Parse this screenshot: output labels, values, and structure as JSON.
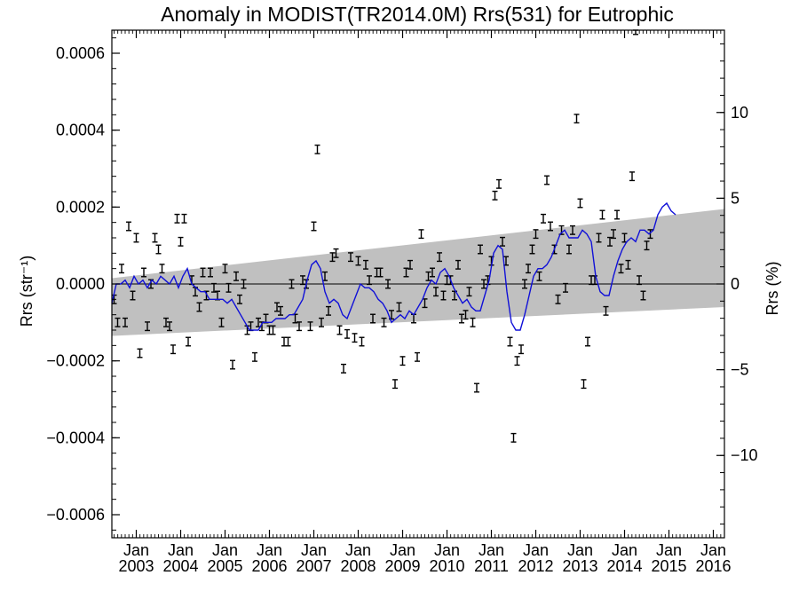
{
  "chart_data": {
    "type": "scatter",
    "title": "Anomaly in MODIST(TR2014.0M) Rrs(531) for Eutrophic",
    "ylabel_left": "Rrs (str⁻¹)",
    "ylabel_right": "Rrs (%)",
    "xlabel": "",
    "xlim": [
      2002.45,
      2016.25
    ],
    "ylim_left": [
      -0.00066,
      0.00066
    ],
    "ylim_right": [
      -14.8,
      14.8
    ],
    "y_ticks_left": [
      {
        "value": -0.0006,
        "label": "−0.0006"
      },
      {
        "value": -0.0004,
        "label": "−0.0004"
      },
      {
        "value": -0.0002,
        "label": "−0.0002"
      },
      {
        "value": 0.0,
        "label": "0.0000"
      },
      {
        "value": 0.0002,
        "label": "0.0002"
      },
      {
        "value": 0.0004,
        "label": "0.0004"
      },
      {
        "value": 0.0006,
        "label": "0.0006"
      }
    ],
    "y_ticks_right": [
      {
        "value": -10,
        "label": "−10"
      },
      {
        "value": -5,
        "label": "−5"
      },
      {
        "value": 0,
        "label": "0"
      },
      {
        "value": 5,
        "label": "5"
      },
      {
        "value": 10,
        "label": "10"
      }
    ],
    "x_ticks": [
      {
        "value": 2003.0,
        "month": "Jan",
        "year": "2003"
      },
      {
        "value": 2004.0,
        "month": "Jan",
        "year": "2004"
      },
      {
        "value": 2005.0,
        "month": "Jan",
        "year": "2005"
      },
      {
        "value": 2006.0,
        "month": "Jan",
        "year": "2006"
      },
      {
        "value": 2007.0,
        "month": "Jan",
        "year": "2007"
      },
      {
        "value": 2008.0,
        "month": "Jan",
        "year": "2008"
      },
      {
        "value": 2009.0,
        "month": "Jan",
        "year": "2009"
      },
      {
        "value": 2010.0,
        "month": "Jan",
        "year": "2010"
      },
      {
        "value": 2011.0,
        "month": "Jan",
        "year": "2011"
      },
      {
        "value": 2012.0,
        "month": "Jan",
        "year": "2012"
      },
      {
        "value": 2013.0,
        "month": "Jan",
        "year": "2013"
      },
      {
        "value": 2014.0,
        "month": "Jan",
        "year": "2014"
      },
      {
        "value": 2015.0,
        "month": "Jan",
        "year": "2015"
      },
      {
        "value": 2016.0,
        "month": "Jan",
        "year": "2016"
      }
    ],
    "confidence_band": {
      "color": "#c0c0c0",
      "upper": [
        [
          2002.45,
          1.5e-05
        ],
        [
          2016.25,
          0.000195
        ]
      ],
      "lower": [
        [
          2002.45,
          -0.000135
        ],
        [
          2016.25,
          -6e-05
        ]
      ]
    },
    "zero_line": 0,
    "error_bar_halfwidth": 1.1e-05,
    "points": [
      [
        2002.5,
        -4e-05
      ],
      [
        2002.58,
        -0.0001
      ],
      [
        2002.67,
        4e-05
      ],
      [
        2002.75,
        -0.0001
      ],
      [
        2002.83,
        0.00015
      ],
      [
        2002.92,
        -3e-05
      ],
      [
        2003.0,
        0.00012
      ],
      [
        2003.08,
        -0.00018
      ],
      [
        2003.17,
        3e-05
      ],
      [
        2003.25,
        -0.00011
      ],
      [
        2003.33,
        0.0
      ],
      [
        2003.42,
        0.00012
      ],
      [
        2003.5,
        9e-05
      ],
      [
        2003.58,
        4e-05
      ],
      [
        2003.67,
        -0.0001
      ],
      [
        2003.75,
        -0.00011
      ],
      [
        2003.83,
        -0.00017
      ],
      [
        2003.92,
        0.00017
      ],
      [
        2004.0,
        0.00011
      ],
      [
        2004.08,
        0.00017
      ],
      [
        2004.17,
        -0.00015
      ],
      [
        2004.25,
        1e-05
      ],
      [
        2004.33,
        -2e-05
      ],
      [
        2004.42,
        -6e-05
      ],
      [
        2004.5,
        3e-05
      ],
      [
        2004.58,
        -3e-05
      ],
      [
        2004.67,
        3e-05
      ],
      [
        2004.75,
        -1e-05
      ],
      [
        2004.83,
        -3e-05
      ],
      [
        2004.92,
        -0.0001
      ],
      [
        2005.0,
        4e-05
      ],
      [
        2005.08,
        -1e-05
      ],
      [
        2005.17,
        -0.00021
      ],
      [
        2005.25,
        2e-05
      ],
      [
        2005.33,
        -4e-05
      ],
      [
        2005.42,
        0.0
      ],
      [
        2005.5,
        -0.00012
      ],
      [
        2005.58,
        -0.00011
      ],
      [
        2005.67,
        -0.00019
      ],
      [
        2005.75,
        -0.0001
      ],
      [
        2005.83,
        -0.00011
      ],
      [
        2005.92,
        -9e-05
      ],
      [
        2006.0,
        -0.00012
      ],
      [
        2006.08,
        -0.00012
      ],
      [
        2006.17,
        -6e-05
      ],
      [
        2006.25,
        -7e-05
      ],
      [
        2006.33,
        -0.00015
      ],
      [
        2006.42,
        -0.00015
      ],
      [
        2006.5,
        0.0
      ],
      [
        2006.58,
        -9e-05
      ],
      [
        2006.67,
        -0.00011
      ],
      [
        2006.75,
        1e-05
      ],
      [
        2006.83,
        0.0
      ],
      [
        2006.92,
        -0.00011
      ],
      [
        2007.0,
        0.00015
      ],
      [
        2007.08,
        0.00035
      ],
      [
        2007.17,
        -0.0001
      ],
      [
        2007.25,
        2e-05
      ],
      [
        2007.33,
        -7e-05
      ],
      [
        2007.42,
        7e-05
      ],
      [
        2007.5,
        8e-05
      ],
      [
        2007.58,
        -0.00012
      ],
      [
        2007.67,
        -0.00022
      ],
      [
        2007.75,
        -0.00013
      ],
      [
        2007.83,
        7e-05
      ],
      [
        2007.92,
        -0.00014
      ],
      [
        2008.0,
        6e-05
      ],
      [
        2008.08,
        -0.00015
      ],
      [
        2008.17,
        5e-05
      ],
      [
        2008.25,
        1e-05
      ],
      [
        2008.33,
        -9e-05
      ],
      [
        2008.42,
        3e-05
      ],
      [
        2008.5,
        3e-05
      ],
      [
        2008.58,
        -0.0001
      ],
      [
        2008.67,
        0.0
      ],
      [
        2008.75,
        -8e-05
      ],
      [
        2008.83,
        -0.00026
      ],
      [
        2008.92,
        -6e-05
      ],
      [
        2009.0,
        -0.0002
      ],
      [
        2009.08,
        3e-05
      ],
      [
        2009.17,
        5e-05
      ],
      [
        2009.25,
        -9e-05
      ],
      [
        2009.33,
        -0.00019
      ],
      [
        2009.42,
        0.00013
      ],
      [
        2009.5,
        -5e-05
      ],
      [
        2009.58,
        2e-05
      ],
      [
        2009.67,
        3e-05
      ],
      [
        2009.75,
        -2e-05
      ],
      [
        2009.83,
        7e-05
      ],
      [
        2009.92,
        -3e-05
      ],
      [
        2010.0,
        1e-05
      ],
      [
        2010.08,
        1e-05
      ],
      [
        2010.17,
        -3e-05
      ],
      [
        2010.25,
        5e-05
      ],
      [
        2010.33,
        -9e-05
      ],
      [
        2010.42,
        -8e-05
      ],
      [
        2010.5,
        -2e-05
      ],
      [
        2010.58,
        -0.0001
      ],
      [
        2010.67,
        -0.00027
      ],
      [
        2010.75,
        9e-05
      ],
      [
        2010.83,
        0.0
      ],
      [
        2010.92,
        1e-05
      ],
      [
        2011.0,
        6e-05
      ],
      [
        2011.08,
        0.00023
      ],
      [
        2011.17,
        0.00026
      ],
      [
        2011.25,
        0.00011
      ],
      [
        2011.33,
        6e-05
      ],
      [
        2011.42,
        -0.00015
      ],
      [
        2011.5,
        -0.0004
      ],
      [
        2011.58,
        -0.0002
      ],
      [
        2011.67,
        -0.00017
      ],
      [
        2011.75,
        0.0
      ],
      [
        2011.83,
        4e-05
      ],
      [
        2011.92,
        9e-05
      ],
      [
        2012.0,
        0.00013
      ],
      [
        2012.08,
        2e-05
      ],
      [
        2012.17,
        0.00017
      ],
      [
        2012.25,
        0.00027
      ],
      [
        2012.33,
        0.00015
      ],
      [
        2012.42,
        9e-05
      ],
      [
        2012.5,
        -4e-05
      ],
      [
        2012.58,
        0.00014
      ],
      [
        2012.67,
        -1e-05
      ],
      [
        2012.75,
        9e-05
      ],
      [
        2012.83,
        0.00014
      ],
      [
        2012.92,
        0.00043
      ],
      [
        2013.0,
        0.00021
      ],
      [
        2013.08,
        -0.00026
      ],
      [
        2013.17,
        -0.00015
      ],
      [
        2013.25,
        1e-05
      ],
      [
        2013.33,
        1e-05
      ],
      [
        2013.42,
        0.00012
      ],
      [
        2013.5,
        0.00018
      ],
      [
        2013.58,
        -7e-05
      ],
      [
        2013.67,
        0.00011
      ],
      [
        2013.75,
        0.00013
      ],
      [
        2013.83,
        0.00018
      ],
      [
        2013.92,
        4e-05
      ],
      [
        2014.0,
        0.00012
      ],
      [
        2014.08,
        5e-05
      ],
      [
        2014.17,
        0.00028
      ],
      [
        2014.25,
        0.00066
      ],
      [
        2014.33,
        1e-05
      ],
      [
        2014.42,
        -3e-05
      ],
      [
        2014.5,
        0.0001
      ],
      [
        2014.58,
        0.00013
      ]
    ],
    "trend_line": [
      [
        2002.45,
        -5e-05
      ],
      [
        2002.55,
        0.0
      ],
      [
        2002.65,
        0.0
      ],
      [
        2002.75,
        1e-05
      ],
      [
        2002.85,
        -1e-05
      ],
      [
        2002.95,
        2e-05
      ],
      [
        2003.05,
        0.0
      ],
      [
        2003.15,
        1e-05
      ],
      [
        2003.25,
        -1e-05
      ],
      [
        2003.35,
        1e-05
      ],
      [
        2003.45,
        0.0
      ],
      [
        2003.55,
        2e-05
      ],
      [
        2003.65,
        1e-05
      ],
      [
        2003.75,
        0.0
      ],
      [
        2003.85,
        2e-05
      ],
      [
        2003.95,
        -1e-05
      ],
      [
        2004.05,
        2e-05
      ],
      [
        2004.15,
        4e-05
      ],
      [
        2004.25,
        0.0
      ],
      [
        2004.35,
        -1e-05
      ],
      [
        2004.45,
        -2e-05
      ],
      [
        2004.55,
        -2e-05
      ],
      [
        2004.65,
        -4e-05
      ],
      [
        2004.75,
        -4e-05
      ],
      [
        2004.85,
        -4e-05
      ],
      [
        2004.95,
        -4e-05
      ],
      [
        2005.05,
        -5e-05
      ],
      [
        2005.15,
        -4e-05
      ],
      [
        2005.25,
        -6e-05
      ],
      [
        2005.35,
        -8e-05
      ],
      [
        2005.45,
        -0.0001
      ],
      [
        2005.55,
        -0.00012
      ],
      [
        2005.65,
        -0.00012
      ],
      [
        2005.75,
        -0.00012
      ],
      [
        2005.85,
        -0.0001
      ],
      [
        2005.95,
        -0.0001
      ],
      [
        2006.05,
        -0.0001
      ],
      [
        2006.15,
        -9e-05
      ],
      [
        2006.25,
        -9e-05
      ],
      [
        2006.35,
        -9e-05
      ],
      [
        2006.45,
        -8e-05
      ],
      [
        2006.55,
        -8e-05
      ],
      [
        2006.65,
        -6e-05
      ],
      [
        2006.75,
        -4e-05
      ],
      [
        2006.85,
        1e-05
      ],
      [
        2006.95,
        5e-05
      ],
      [
        2007.05,
        6e-05
      ],
      [
        2007.15,
        4e-05
      ],
      [
        2007.25,
        -2e-05
      ],
      [
        2007.35,
        -5e-05
      ],
      [
        2007.45,
        -4e-05
      ],
      [
        2007.55,
        -5e-05
      ],
      [
        2007.65,
        -8e-05
      ],
      [
        2007.75,
        -9e-05
      ],
      [
        2007.85,
        -6e-05
      ],
      [
        2007.95,
        -3e-05
      ],
      [
        2008.05,
        0.0
      ],
      [
        2008.15,
        -1e-05
      ],
      [
        2008.25,
        -1e-05
      ],
      [
        2008.35,
        -2e-05
      ],
      [
        2008.45,
        -4e-05
      ],
      [
        2008.55,
        -5e-05
      ],
      [
        2008.65,
        -7e-05
      ],
      [
        2008.75,
        -0.0001
      ],
      [
        2008.85,
        -9e-05
      ],
      [
        2008.95,
        -8e-05
      ],
      [
        2009.05,
        -9e-05
      ],
      [
        2009.15,
        -7e-05
      ],
      [
        2009.25,
        -8e-05
      ],
      [
        2009.35,
        -6e-05
      ],
      [
        2009.45,
        -4e-05
      ],
      [
        2009.55,
        -1e-05
      ],
      [
        2009.65,
        1e-05
      ],
      [
        2009.75,
        0.0
      ],
      [
        2009.85,
        3e-05
      ],
      [
        2009.95,
        4e-05
      ],
      [
        2010.05,
        2e-05
      ],
      [
        2010.15,
        -1e-05
      ],
      [
        2010.25,
        -3e-05
      ],
      [
        2010.35,
        -5e-05
      ],
      [
        2010.45,
        -4e-05
      ],
      [
        2010.55,
        -6e-05
      ],
      [
        2010.65,
        -7e-05
      ],
      [
        2010.75,
        -7e-05
      ],
      [
        2010.85,
        -3e-05
      ],
      [
        2010.95,
        1e-05
      ],
      [
        2011.05,
        8e-05
      ],
      [
        2011.15,
        0.0001
      ],
      [
        2011.25,
        9e-05
      ],
      [
        2011.35,
        -2e-05
      ],
      [
        2011.45,
        -0.0001
      ],
      [
        2011.55,
        -0.00012
      ],
      [
        2011.65,
        -0.00012
      ],
      [
        2011.75,
        -8e-05
      ],
      [
        2011.85,
        -3e-05
      ],
      [
        2011.95,
        2e-05
      ],
      [
        2012.05,
        4e-05
      ],
      [
        2012.15,
        4e-05
      ],
      [
        2012.25,
        5e-05
      ],
      [
        2012.35,
        7e-05
      ],
      [
        2012.45,
        0.0001
      ],
      [
        2012.55,
        0.00013
      ],
      [
        2012.65,
        0.00014
      ],
      [
        2012.75,
        0.00012
      ],
      [
        2012.85,
        0.00012
      ],
      [
        2012.95,
        0.00012
      ],
      [
        2013.05,
        0.00014
      ],
      [
        2013.15,
        0.00013
      ],
      [
        2013.25,
        0.00011
      ],
      [
        2013.35,
        2e-05
      ],
      [
        2013.45,
        -2e-05
      ],
      [
        2013.55,
        -3e-05
      ],
      [
        2013.65,
        -3e-05
      ],
      [
        2013.75,
        2e-05
      ],
      [
        2013.85,
        6e-05
      ],
      [
        2013.95,
        9e-05
      ],
      [
        2014.05,
        0.00011
      ],
      [
        2014.15,
        0.00012
      ],
      [
        2014.25,
        0.00011
      ],
      [
        2014.35,
        0.00014
      ],
      [
        2014.45,
        0.00014
      ],
      [
        2014.55,
        0.00013
      ],
      [
        2014.65,
        0.00014
      ],
      [
        2014.75,
        0.00018
      ],
      [
        2014.85,
        0.0002
      ],
      [
        2014.95,
        0.00021
      ],
      [
        2015.05,
        0.00019
      ],
      [
        2015.15,
        0.00018
      ]
    ],
    "colors": {
      "trend": "#1010d8",
      "points": "#000000",
      "band": "#c0c0c0",
      "zero_line": "#000000"
    }
  }
}
